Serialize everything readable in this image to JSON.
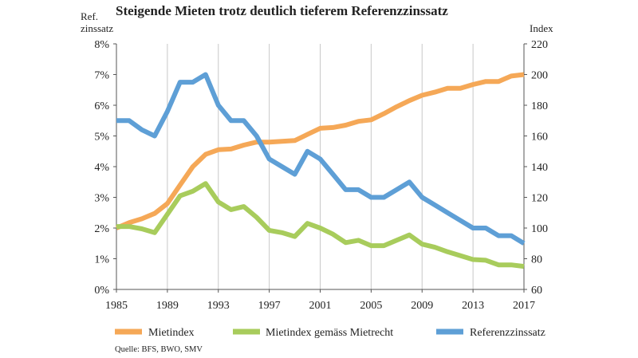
{
  "chart_data": {
    "type": "line",
    "title": "Steigende Mieten trotz deutlich tieferem Referenzzinssatz",
    "ylabel_left_lines": [
      "Ref.",
      "zinssatz"
    ],
    "ylabel_right": "Index",
    "source": "Quelle: BFS, BWO, SMV",
    "grid": "vertical",
    "legend_position": "bottom",
    "x": [
      1985,
      1986,
      1987,
      1988,
      1989,
      1990,
      1991,
      1992,
      1993,
      1994,
      1995,
      1996,
      1997,
      1998,
      1999,
      2000,
      2001,
      2002,
      2003,
      2004,
      2005,
      2006,
      2007,
      2008,
      2009,
      2010,
      2011,
      2012,
      2013,
      2014,
      2015,
      2016,
      2017
    ],
    "xlim": [
      1985,
      2017
    ],
    "x_ticks": [
      "1985",
      "1989",
      "1993",
      "1997",
      "2001",
      "2005",
      "2009",
      "2013",
      "2017"
    ],
    "y_left": {
      "ylim": [
        0,
        8
      ],
      "ticks": [
        "0%",
        "1%",
        "2%",
        "3%",
        "4%",
        "5%",
        "6%",
        "7%",
        "8%"
      ]
    },
    "y_right": {
      "ylim": [
        60,
        220
      ],
      "ticks": [
        "60",
        "80",
        "100",
        "120",
        "140",
        "160",
        "180",
        "200",
        "220"
      ]
    },
    "series": [
      {
        "name": "Mietindex",
        "axis": "right",
        "color": "#f5a857",
        "values": [
          100,
          103.5,
          106,
          109.5,
          116,
          128,
          140,
          148,
          151,
          151.5,
          154,
          156,
          156,
          156.5,
          157,
          161,
          165,
          165.5,
          167,
          169.5,
          170.5,
          174.5,
          179,
          183,
          186.5,
          188.5,
          191,
          191,
          193.5,
          195.5,
          195.5,
          199,
          200
        ]
      },
      {
        "name": "Mietindex gemäss Mietrecht",
        "axis": "right",
        "color": "#a8cc5c",
        "values": [
          101,
          101,
          99.5,
          97,
          109,
          121,
          124,
          129,
          117,
          112,
          114,
          107,
          98.5,
          97,
          94.5,
          103,
          100,
          96,
          90.5,
          92,
          88.5,
          88.5,
          92,
          95.5,
          89.5,
          87.5,
          84.5,
          82,
          79.5,
          79,
          76,
          76,
          75
        ]
      },
      {
        "name": "Referenzzinssatz",
        "axis": "left",
        "color": "#5e9fd6",
        "values": [
          5.5,
          5.5,
          5.2,
          5.0,
          5.8,
          6.75,
          6.75,
          7.0,
          6.0,
          5.5,
          5.5,
          5.0,
          4.25,
          4.0,
          3.75,
          4.5,
          4.25,
          3.75,
          3.25,
          3.25,
          3.0,
          3.0,
          3.25,
          3.5,
          3.0,
          2.75,
          2.5,
          2.25,
          2.0,
          2.0,
          1.75,
          1.75,
          1.5
        ]
      }
    ]
  }
}
